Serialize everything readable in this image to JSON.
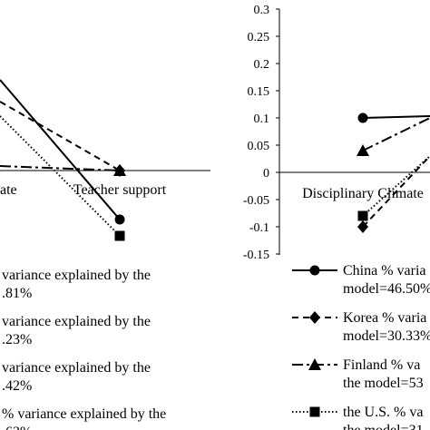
{
  "chart_data": [
    {
      "type": "line",
      "categories": [
        "Disciplinary Climate",
        "Teacher support"
      ],
      "category_labels_visible": [
        "ate",
        "Teacher support"
      ],
      "series": [
        {
          "key": "china",
          "style": "solid",
          "marker": "circle",
          "values": [
            null,
            -0.09
          ]
        },
        {
          "key": "korea",
          "style": "dashed",
          "marker": "diamond",
          "values": [
            null,
            0.0
          ]
        },
        {
          "key": "finland",
          "style": "dash-dot",
          "marker": "triangle",
          "values": [
            null,
            0.0
          ]
        },
        {
          "key": "us",
          "style": "dotted",
          "marker": "square",
          "values": [
            null,
            -0.12
          ]
        }
      ],
      "legend": [
        {
          "key": "china",
          "line1": "variance explained by the",
          "line2": ".81%"
        },
        {
          "key": "korea",
          "line1": "variance explained by the",
          "line2": ".23%"
        },
        {
          "key": "finland",
          "line1": "variance explained by the",
          "line2": ".42%"
        },
        {
          "key": "us",
          "line1": "% variance explained by the",
          "line2": ".63%"
        }
      ]
    },
    {
      "type": "line",
      "categories": [
        "Disciplinary Climate",
        "Teacher support"
      ],
      "ylim": [
        -0.15,
        0.3
      ],
      "yticks": [
        "0.3",
        "0.25",
        "0.2",
        "0.15",
        "0.1",
        "0.05",
        "0",
        "-0.05",
        "-0.1",
        "-0.15"
      ],
      "series": [
        {
          "key": "china",
          "style": "solid",
          "marker": "circle",
          "values": [
            0.1,
            null
          ]
        },
        {
          "key": "korea",
          "style": "dashed",
          "marker": "diamond",
          "values": [
            -0.1,
            null
          ]
        },
        {
          "key": "finland",
          "style": "dash-dot",
          "marker": "triangle",
          "values": [
            0.04,
            null
          ]
        },
        {
          "key": "us",
          "style": "dotted",
          "marker": "square",
          "values": [
            -0.08,
            null
          ]
        }
      ],
      "legend": [
        {
          "key": "china",
          "line1": "China % varia",
          "line2": "model=46.50%"
        },
        {
          "key": "korea",
          "line1": "Korea % varia",
          "line2": "model=30.33%"
        },
        {
          "key": "finland",
          "line1": "Finland % va",
          "line2": "the model=53"
        },
        {
          "key": "us",
          "line1": "the U.S. % va",
          "line2": "the model=31"
        }
      ]
    }
  ]
}
